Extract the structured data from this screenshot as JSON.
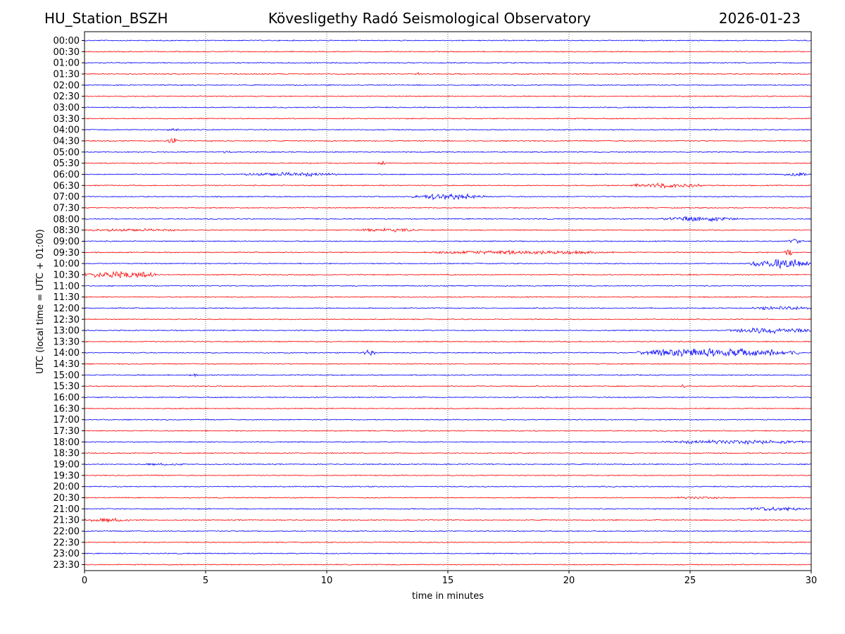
{
  "header": {
    "station": "HU_Station_BSZH",
    "observatory": "Kövesligethy Radó Seismological Observatory",
    "date": "2026-01-23"
  },
  "chart_data": {
    "type": "helicorder",
    "title": "Kövesligethy Radó Seismological Observatory",
    "xlabel": "time in minutes",
    "ylabel": "UTC (local time = UTC + 01:00)",
    "xlim": [
      0,
      30
    ],
    "xticks": [
      0,
      5,
      10,
      15,
      20,
      25,
      30
    ],
    "grid": "vertical dotted at each x tick",
    "colors": {
      "even_rows": "#0000ff",
      "odd_rows": "#ff0000"
    },
    "rows": [
      "00:00",
      "00:30",
      "01:00",
      "01:30",
      "02:00",
      "02:30",
      "03:00",
      "03:30",
      "04:00",
      "04:30",
      "05:00",
      "05:30",
      "06:00",
      "06:30",
      "07:00",
      "07:30",
      "08:00",
      "08:30",
      "09:00",
      "09:30",
      "10:00",
      "10:30",
      "11:00",
      "11:30",
      "12:00",
      "12:30",
      "13:00",
      "13:30",
      "14:00",
      "14:30",
      "15:00",
      "15:30",
      "16:00",
      "16:30",
      "17:00",
      "17:30",
      "18:00",
      "18:30",
      "19:00",
      "19:30",
      "20:00",
      "20:30",
      "21:00",
      "21:30",
      "22:00",
      "22:30",
      "23:00",
      "23:30"
    ],
    "events": [
      {
        "row": "01:00",
        "start_min": 20.8,
        "end_min": 21.0,
        "amplitude": 0.5
      },
      {
        "row": "01:30",
        "start_min": 11.2,
        "end_min": 11.4,
        "amplitude": 0.5
      },
      {
        "row": "01:30",
        "start_min": 13.6,
        "end_min": 13.9,
        "amplitude": 0.8
      },
      {
        "row": "04:00",
        "start_min": 3.3,
        "end_min": 4.3,
        "amplitude": 0.5
      },
      {
        "row": "04:30",
        "start_min": 3.4,
        "end_min": 3.9,
        "amplitude": 1.2
      },
      {
        "row": "05:00",
        "start_min": 5.6,
        "end_min": 6.1,
        "amplitude": 0.5
      },
      {
        "row": "05:30",
        "start_min": 12.1,
        "end_min": 12.5,
        "amplitude": 0.9
      },
      {
        "row": "06:00",
        "start_min": 6.5,
        "end_min": 10.5,
        "amplitude": 0.8
      },
      {
        "row": "06:00",
        "start_min": 28.8,
        "end_min": 30.0,
        "amplitude": 0.8
      },
      {
        "row": "06:30",
        "start_min": 22.5,
        "end_min": 25.5,
        "amplitude": 1.0
      },
      {
        "row": "07:00",
        "start_min": 13.5,
        "end_min": 16.5,
        "amplitude": 1.2
      },
      {
        "row": "08:00",
        "start_min": 23.8,
        "end_min": 27.0,
        "amplitude": 1.0
      },
      {
        "row": "08:30",
        "start_min": 0.0,
        "end_min": 4.0,
        "amplitude": 0.6
      },
      {
        "row": "08:30",
        "start_min": 11.0,
        "end_min": 14.0,
        "amplitude": 0.7
      },
      {
        "row": "09:00",
        "start_min": 29.0,
        "end_min": 29.7,
        "amplitude": 1.0
      },
      {
        "row": "09:30",
        "start_min": 14.0,
        "end_min": 22.0,
        "amplitude": 0.8
      },
      {
        "row": "09:30",
        "start_min": 28.9,
        "end_min": 29.2,
        "amplitude": 1.6
      },
      {
        "row": "10:00",
        "start_min": 27.5,
        "end_min": 30.0,
        "amplitude": 1.8
      },
      {
        "row": "10:30",
        "start_min": 0.0,
        "end_min": 3.0,
        "amplitude": 1.5
      },
      {
        "row": "12:00",
        "start_min": 27.5,
        "end_min": 30.0,
        "amplitude": 0.8
      },
      {
        "row": "13:00",
        "start_min": 26.5,
        "end_min": 30.0,
        "amplitude": 1.2
      },
      {
        "row": "14:00",
        "start_min": 11.5,
        "end_min": 12.0,
        "amplitude": 1.2
      },
      {
        "row": "14:00",
        "start_min": 22.8,
        "end_min": 29.5,
        "amplitude": 1.6
      },
      {
        "row": "15:00",
        "start_min": 4.2,
        "end_min": 4.8,
        "amplitude": 0.5
      },
      {
        "row": "15:30",
        "start_min": 24.6,
        "end_min": 24.8,
        "amplitude": 0.8
      },
      {
        "row": "18:00",
        "start_min": 23.8,
        "end_min": 30.0,
        "amplitude": 0.8
      },
      {
        "row": "19:00",
        "start_min": 2.3,
        "end_min": 4.3,
        "amplitude": 0.5
      },
      {
        "row": "20:30",
        "start_min": 24.2,
        "end_min": 26.5,
        "amplitude": 0.5
      },
      {
        "row": "21:00",
        "start_min": 27.0,
        "end_min": 30.0,
        "amplitude": 0.8
      },
      {
        "row": "21:30",
        "start_min": 0.0,
        "end_min": 2.0,
        "amplitude": 0.8
      }
    ]
  }
}
